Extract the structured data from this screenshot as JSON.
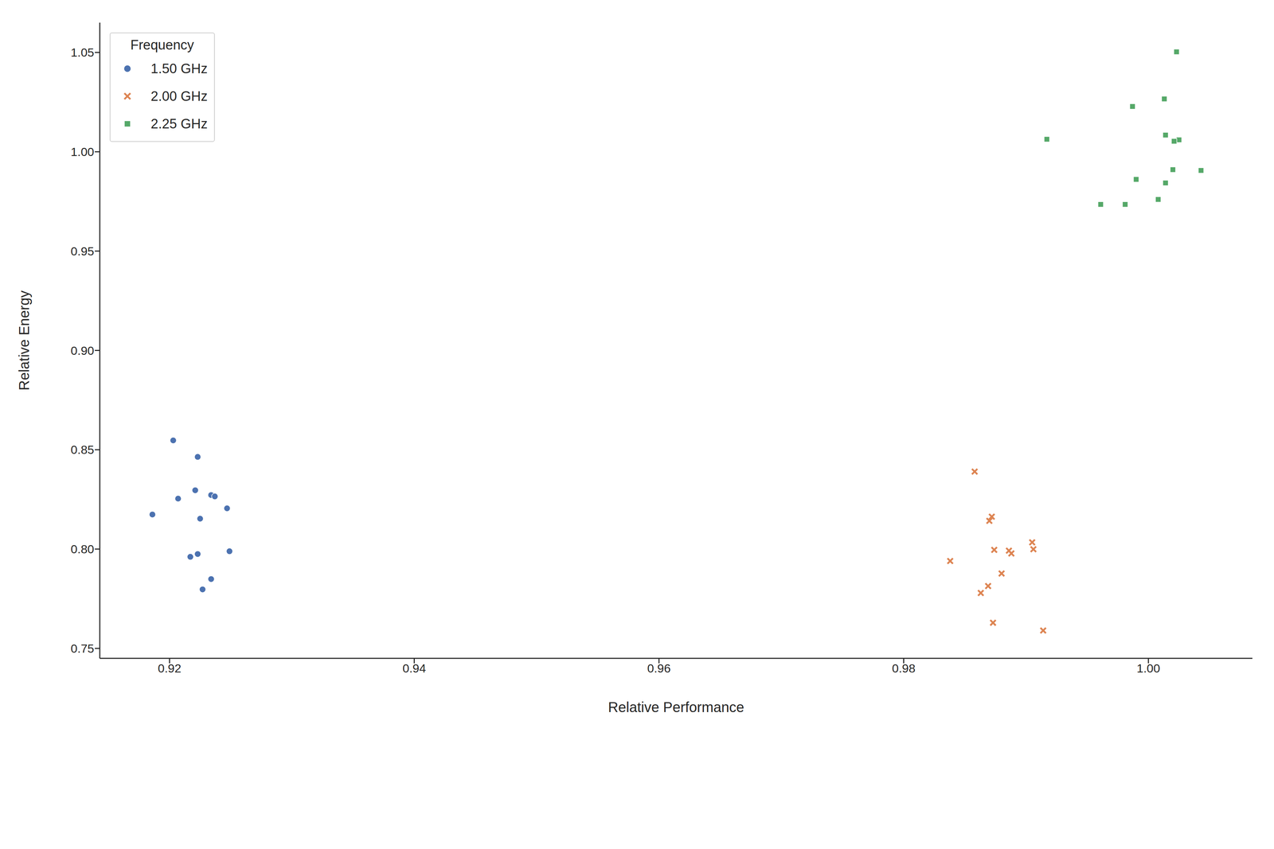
{
  "chart_data": {
    "type": "scatter",
    "x_label": "Relative Performance",
    "y_label": "Relative Energy",
    "legend": "upper left",
    "legend_title": "Frequency",
    "grid": false,
    "xlim": [
      0.9143,
      1.0085
    ],
    "ylim": [
      0.745,
      1.065
    ],
    "xticks": [
      0.92,
      0.94,
      0.96,
      0.98,
      {
        "value": 1,
        "label": "1.00"
      }
    ],
    "yticks": [
      0.75,
      {
        "value": 0.8,
        "label": "0.80"
      },
      0.85,
      {
        "value": 0.9,
        "label": "0.90"
      },
      0.95,
      {
        "value": 1,
        "label": "1.00"
      },
      1.05
    ],
    "series": [
      {
        "name": "1.50 GHz",
        "color": "#4c72b0",
        "marker": "circle",
        "x": [
          0.9203,
          0.9223,
          0.9207,
          0.9221,
          0.9234,
          0.9237,
          0.9247,
          0.9186,
          0.9225,
          0.9249,
          0.9223,
          0.9217,
          0.9234,
          0.9227
        ],
        "values": [
          0.8547,
          0.8464,
          0.8254,
          0.8296,
          0.8272,
          0.8265,
          0.8205,
          0.8174,
          0.8153,
          0.7989,
          0.7975,
          0.7961,
          0.7849,
          0.7797
        ]
      },
      {
        "name": "2.00 GHz",
        "color": "#dd8452",
        "marker": "x",
        "x": [
          0.9858,
          0.9872,
          0.987,
          0.9905,
          0.9874,
          0.9886,
          0.9906,
          0.9888,
          0.9838,
          0.988,
          0.9869,
          0.9863,
          0.9873,
          0.9914
        ],
        "values": [
          0.839,
          0.8163,
          0.8142,
          0.8034,
          0.7996,
          0.7992,
          0.7999,
          0.7978,
          0.794,
          0.7877,
          0.7814,
          0.7779,
          0.7629,
          0.759
        ]
      },
      {
        "name": "2.25 GHz",
        "color": "#55a868",
        "marker": "square",
        "x": [
          1.0023,
          1.0013,
          0.9987,
          1.0014,
          0.9917,
          1.0025,
          1.0021,
          1.002,
          1.0043,
          0.999,
          1.0014,
          1.0008,
          0.9961,
          0.9981
        ],
        "values": [
          1.0503,
          1.0266,
          1.0228,
          1.0084,
          1.0063,
          1.006,
          1.0053,
          0.991,
          0.9906,
          0.9861,
          0.9843,
          0.976,
          0.9735,
          0.9735
        ]
      }
    ]
  }
}
